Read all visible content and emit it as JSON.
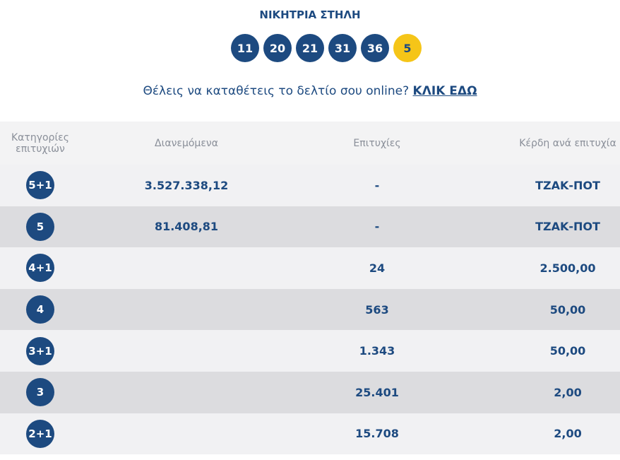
{
  "header": {
    "title": "ΝΙΚΗΤΡΙΑ ΣΤΗΛΗ"
  },
  "winning_numbers": [
    "11",
    "20",
    "21",
    "31",
    "36"
  ],
  "bonus_number": "5",
  "prompt": {
    "text": "Θέλεις να καταθέτεις το δελτίο σου online?",
    "link": "ΚΛΙΚ ΕΔΩ"
  },
  "table": {
    "headers": [
      "Κατηγορίες επιτυχιών",
      "Διανεμόμενα",
      "Επιτυχίες",
      "Κέρδη ανά επιτυχία"
    ],
    "rows": [
      {
        "category": "5+1",
        "distributed": "3.527.338,12",
        "winners": "-",
        "prize": "ΤΖΑΚ-ΠΟΤ"
      },
      {
        "category": "5",
        "distributed": "81.408,81",
        "winners": "-",
        "prize": "ΤΖΑΚ-ΠΟΤ"
      },
      {
        "category": "4+1",
        "winners": "24",
        "prize": "2.500,00"
      },
      {
        "category": "4",
        "winners": "563",
        "prize": "50,00"
      },
      {
        "category": "3+1",
        "winners": "1.343",
        "prize": "50,00"
      },
      {
        "category": "3",
        "winners": "25.401",
        "prize": "2,00"
      },
      {
        "category": "2+1",
        "winners": "15.708",
        "prize": "2,00"
      }
    ]
  }
}
